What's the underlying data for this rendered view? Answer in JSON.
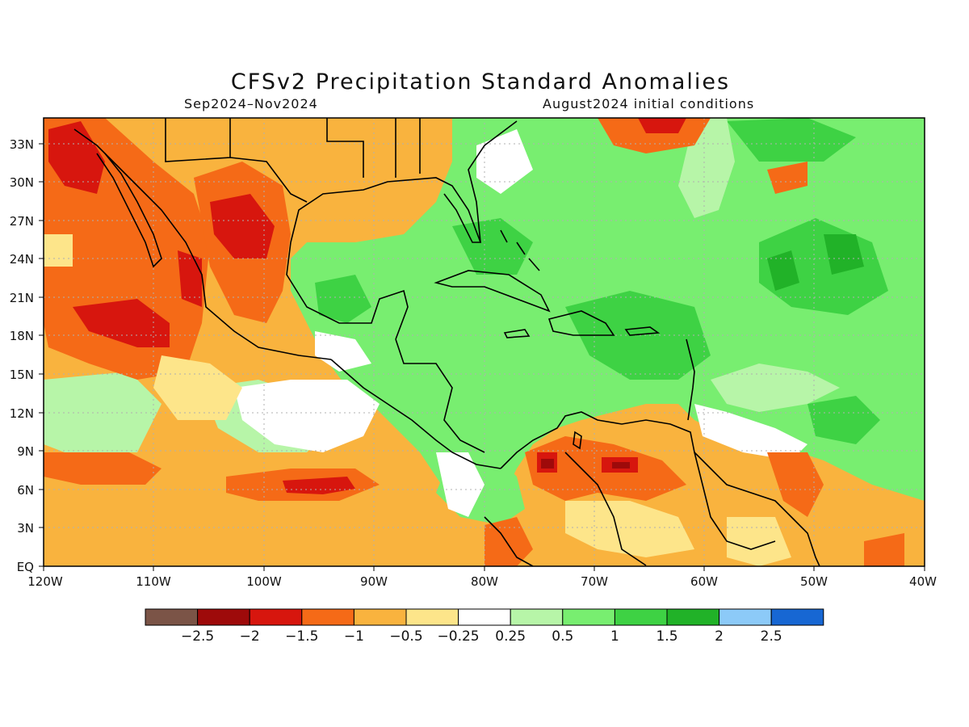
{
  "title": "CFSv2 Precipitation Standard Anomalies",
  "period": "Sep2024–Nov2024",
  "initial_conditions": "August2024 initial conditions",
  "lat_labels": [
    "33N",
    "30N",
    "27N",
    "24N",
    "21N",
    "18N",
    "15N",
    "12N",
    "9N",
    "6N",
    "3N",
    "EQ"
  ],
  "lon_labels": [
    "120W",
    "110W",
    "100W",
    "90W",
    "80W",
    "70W",
    "60W",
    "50W",
    "40W"
  ],
  "colorbar": {
    "colors": [
      "#7b5447",
      "#9e0a0a",
      "#d7160e",
      "#f56a17",
      "#f9b33e",
      "#fde58a",
      "#ffffff",
      "#b7f5a8",
      "#78ee70",
      "#3ed244",
      "#21b228",
      "#8ccaf8",
      "#1767d3"
    ],
    "labels": [
      "−2.5",
      "−2",
      "−1.5",
      "−1",
      "−0.5",
      "−0.25",
      "0.25",
      "0.5",
      "1",
      "1.5",
      "2",
      "2.5"
    ]
  },
  "map_extent": {
    "lon": [
      -120,
      -40
    ],
    "lat": [
      0,
      35
    ]
  },
  "colors": {
    "land_line": "#000000",
    "grid": "#b0b0b0"
  }
}
